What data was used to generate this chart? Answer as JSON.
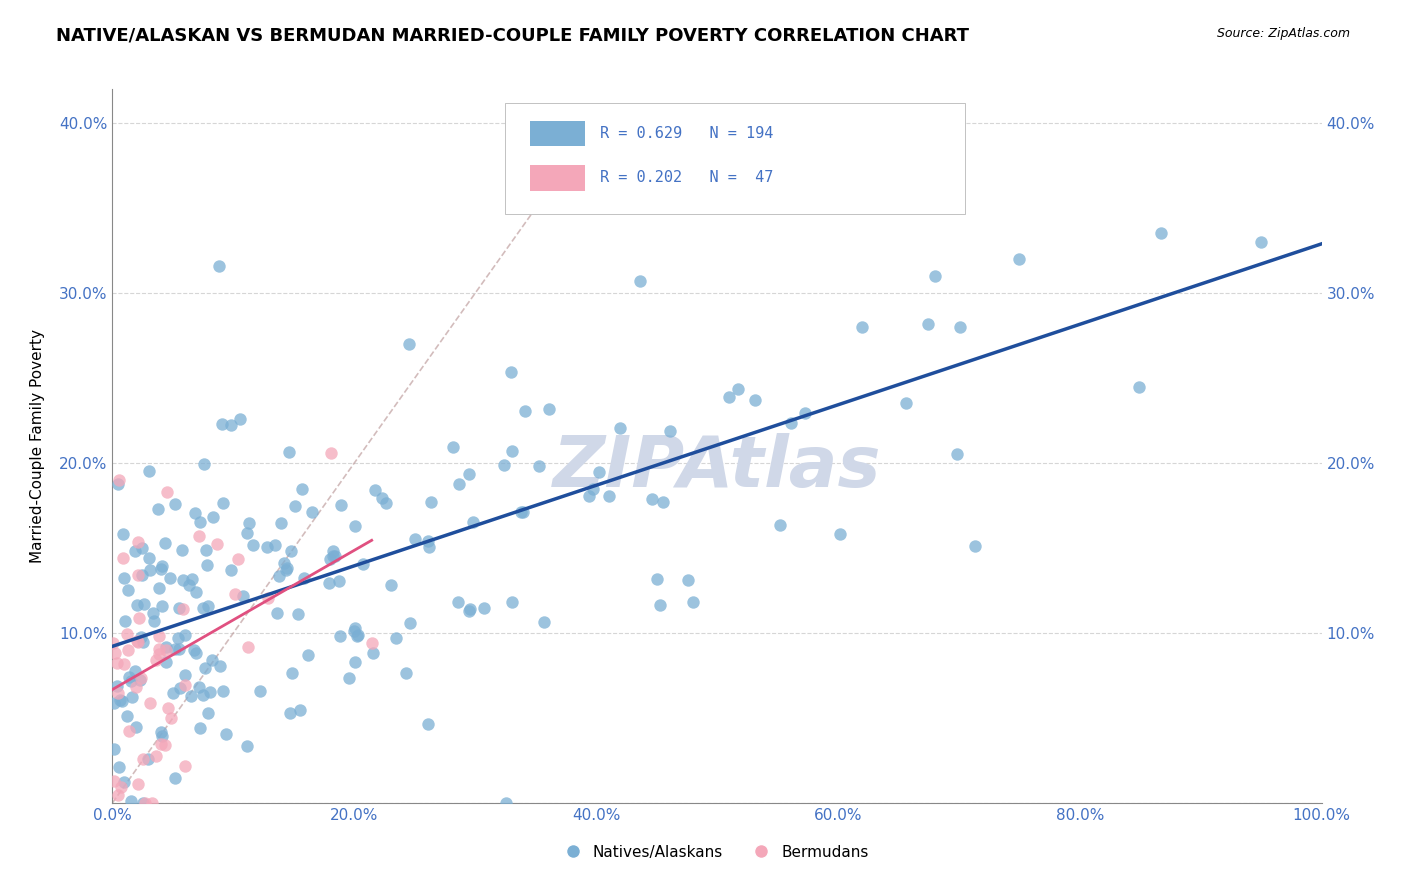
{
  "title": "NATIVE/ALASKAN VS BERMUDAN MARRIED-COUPLE FAMILY POVERTY CORRELATION CHART",
  "source": "Source: ZipAtlas.com",
  "ylabel": "Married-Couple Family Poverty",
  "xlim": [
    0,
    100
  ],
  "ylim": [
    0,
    42
  ],
  "xtick_labels": [
    "0.0%",
    "20.0%",
    "40.0%",
    "60.0%",
    "80.0%",
    "100.0%"
  ],
  "ytick_labels": [
    "",
    "10.0%",
    "20.0%",
    "30.0%",
    "40.0%"
  ],
  "blue_R": 0.629,
  "blue_N": 194,
  "pink_R": 0.202,
  "pink_N": 47,
  "blue_color": "#7bafd4",
  "pink_color": "#f4a7b9",
  "blue_line_color": "#1f4e9c",
  "pink_line_color": "#e05080",
  "ref_line_color": "#c0a0a0",
  "watermark": "ZIPAtlas",
  "watermark_color": "#d0d8e8",
  "legend_label_blue": "Natives/Alaskans",
  "legend_label_pink": "Bermudans",
  "background_color": "#ffffff",
  "grid_color": "#cccccc",
  "title_fontsize": 13,
  "tick_color": "#4472c4",
  "tick_fontsize": 11
}
